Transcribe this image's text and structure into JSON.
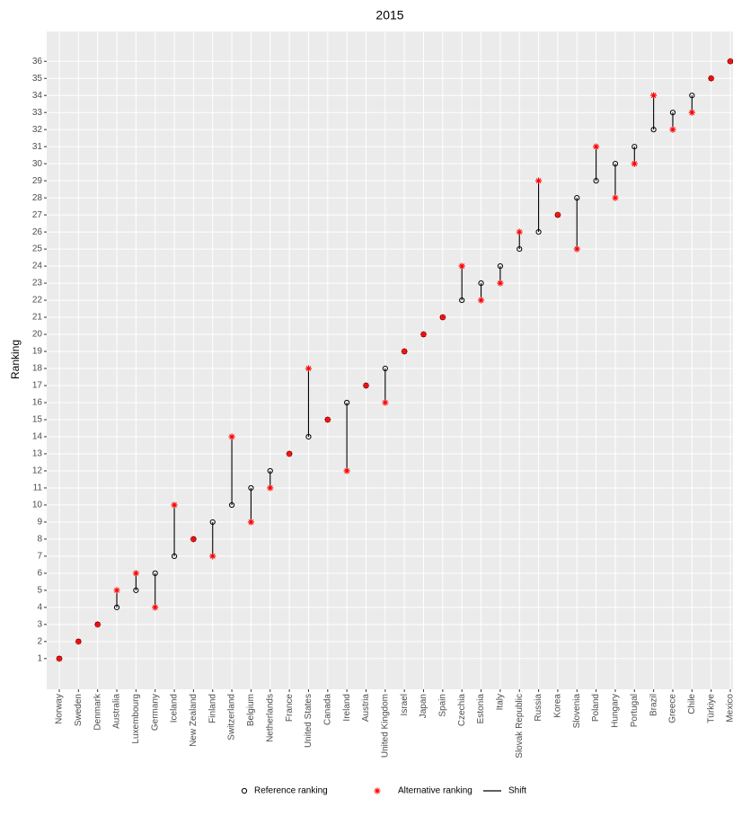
{
  "chart_data": {
    "type": "dumbbell",
    "title": "2015",
    "y_label": "Ranking",
    "categories": [
      "Norway",
      "Sweden",
      "Denmark",
      "Australia",
      "Luxembourg",
      "Germany",
      "Iceland",
      "New Zealand",
      "Finland",
      "Switzerland",
      "Belgium",
      "Netherlands",
      "France",
      "United States",
      "Canada",
      "Ireland",
      "Austria",
      "United Kingdom",
      "Israel",
      "Japan",
      "Spain",
      "Czechia",
      "Estonia",
      "Italy",
      "Slovak Republic",
      "Russia",
      "Korea",
      "Slovenia",
      "Poland",
      "Hungary",
      "Portugal",
      "Brazil",
      "Greece",
      "Chile",
      "Türkiye",
      "Mexico"
    ],
    "series": [
      {
        "name": "Reference ranking",
        "color": "#000000",
        "values": [
          1,
          2,
          3,
          4,
          5,
          6,
          7,
          8,
          9,
          10,
          11,
          12,
          13,
          14,
          15,
          16,
          17,
          18,
          19,
          20,
          21,
          22,
          23,
          24,
          25,
          26,
          27,
          28,
          29,
          30,
          31,
          32,
          33,
          34,
          35,
          36
        ]
      },
      {
        "name": "Alternative ranking",
        "color": "#ff0000",
        "values": [
          1,
          2,
          3,
          5,
          6,
          4,
          10,
          8,
          7,
          14,
          9,
          11,
          13,
          18,
          15,
          12,
          17,
          16,
          19,
          20,
          21,
          24,
          22,
          23,
          26,
          29,
          27,
          25,
          31,
          28,
          30,
          34,
          32,
          33,
          35,
          36
        ]
      }
    ],
    "segment_name": "Shift",
    "ylim": [
      -0.8,
      37.75
    ],
    "yticks": [
      1,
      2,
      3,
      4,
      5,
      6,
      7,
      8,
      9,
      10,
      11,
      12,
      13,
      14,
      15,
      16,
      17,
      18,
      19,
      20,
      21,
      22,
      23,
      24,
      25,
      26,
      27,
      28,
      29,
      30,
      31,
      32,
      33,
      34,
      35,
      36
    ],
    "grid": true
  }
}
